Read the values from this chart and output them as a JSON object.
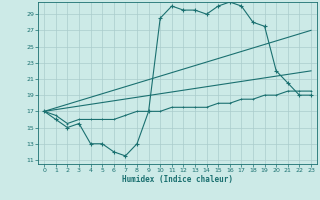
{
  "xlabel": "Humidex (Indice chaleur)",
  "bg_color": "#cceae7",
  "grid_color": "#aacccc",
  "line_color": "#1a7070",
  "x_lim": [
    -0.5,
    23.5
  ],
  "y_lim": [
    10.5,
    30.5
  ],
  "yticks": [
    11,
    13,
    15,
    17,
    19,
    21,
    23,
    25,
    27,
    29
  ],
  "xticks": [
    0,
    1,
    2,
    3,
    4,
    5,
    6,
    7,
    8,
    9,
    10,
    11,
    12,
    13,
    14,
    15,
    16,
    17,
    18,
    19,
    20,
    21,
    22,
    23
  ],
  "line1_x": [
    0,
    1,
    2,
    3,
    4,
    5,
    6,
    7,
    8,
    9,
    10,
    11,
    12,
    13,
    14,
    15,
    16,
    17,
    18,
    19,
    20,
    21,
    22,
    23
  ],
  "line1_y": [
    17,
    16,
    15,
    15.5,
    13,
    13,
    12,
    11.5,
    13,
    17,
    28.5,
    30,
    29.5,
    29.5,
    29,
    30,
    30.5,
    30,
    28,
    27.5,
    22,
    20.5,
    19,
    19
  ],
  "line2_x": [
    0,
    23
  ],
  "line2_y": [
    17,
    27
  ],
  "line3_x": [
    0,
    23
  ],
  "line3_y": [
    17,
    22
  ],
  "line4_x": [
    0,
    1,
    2,
    3,
    4,
    5,
    6,
    7,
    8,
    9,
    10,
    11,
    12,
    13,
    14,
    15,
    16,
    17,
    18,
    19,
    20,
    21,
    22,
    23
  ],
  "line4_y": [
    17,
    16.5,
    15.5,
    16,
    16,
    16,
    16,
    16.5,
    17,
    17,
    17,
    17.5,
    17.5,
    17.5,
    17.5,
    18,
    18,
    18.5,
    18.5,
    19,
    19,
    19.5,
    19.5,
    19.5
  ]
}
